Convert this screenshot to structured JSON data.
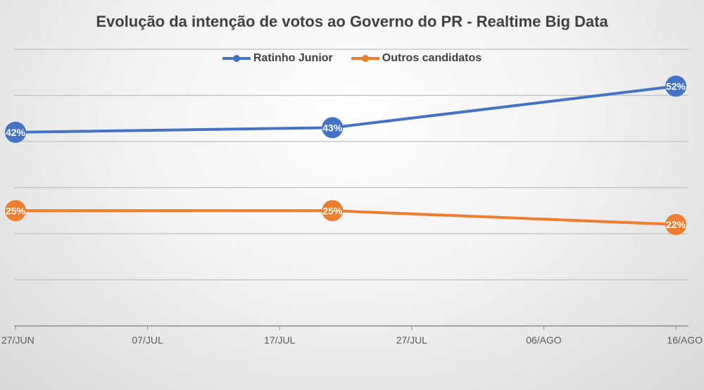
{
  "chart_data": {
    "type": "line",
    "title": "Evolução da intenção de votos ao Governo do PR - Realtime Big Data",
    "x_ticks": [
      "27/JUN",
      "07/JUL",
      "17/JUL",
      "27/JUL",
      "06/AGO",
      "16/AGO"
    ],
    "x": [
      "27/JUN",
      "21/JUL",
      "16/AGO"
    ],
    "ylim": [
      0,
      60
    ],
    "y_gridlines": [
      10,
      20,
      30,
      40,
      50,
      60
    ],
    "grid": true,
    "legend_position": "top",
    "series": [
      {
        "name": "Ratinho Junior",
        "color": "#4472C4",
        "values": [
          42,
          43,
          52
        ],
        "labels": [
          "42%",
          "43%",
          "52%"
        ]
      },
      {
        "name": "Outros candidatos",
        "color": "#ED7D31",
        "values": [
          25,
          25,
          22
        ],
        "labels": [
          "25%",
          "25%",
          "22%"
        ]
      }
    ]
  }
}
